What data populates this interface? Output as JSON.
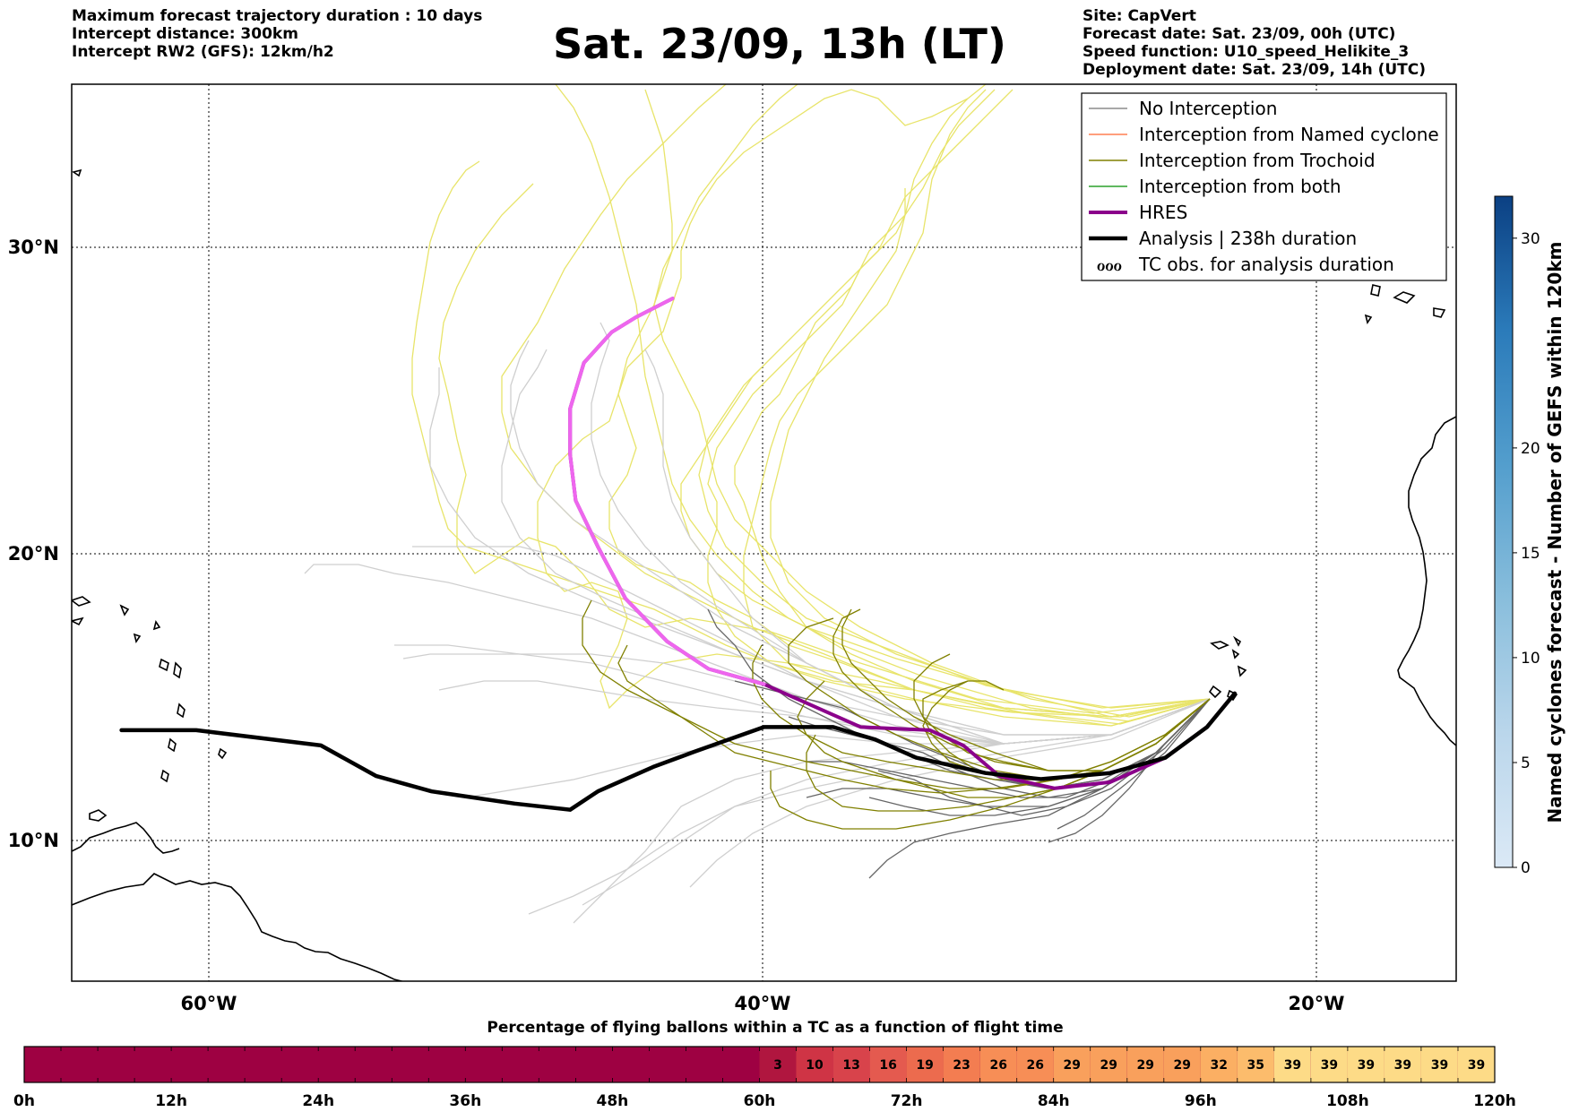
{
  "header_left": {
    "line1": "Maximum forecast trajectory duration : 10 days",
    "line2": "Intercept distance: 300km",
    "line3": "Intercept RW2 (GFS):  12km/h2"
  },
  "title": "Sat. 23/09, 13h (LT)",
  "header_right": {
    "line1": "Site: CapVert",
    "line2": "Forecast date: Sat. 23/09, 00h (UTC)",
    "line3": "Speed function: U10_speed_Helikite_3",
    "line4": "Deployment date: Sat. 23/09, 14h (UTC)"
  },
  "legend": {
    "items": [
      {
        "label": "No Interception",
        "color": "#8c8c8c"
      },
      {
        "label": "Interception from Named cyclone",
        "color": "#ff7f50"
      },
      {
        "label": "Interception from Trochoid",
        "color": "#808000"
      },
      {
        "label": "Interception from both",
        "color": "#2ca02c"
      },
      {
        "label": "HRES",
        "color": "#8b008b"
      },
      {
        "label": "Analysis | 238h duration",
        "color": "#000000"
      },
      {
        "label": "TC obs. for analysis duration",
        "symbol": "ℴℴℴ"
      }
    ]
  },
  "colorbar": {
    "title": "Named cyclones forecast - Number of GEFS within 120km",
    "ticks": [
      "0",
      "5",
      "10",
      "15",
      "20",
      "30"
    ],
    "tick_values": [
      0,
      5,
      10,
      15,
      20,
      30
    ],
    "range": [
      0,
      32
    ]
  },
  "bottom": {
    "title": "Percentage of flying ballons within a TC as a function of flight time",
    "hour_labels": [
      "0h",
      "12h",
      "24h",
      "36h",
      "48h",
      "60h",
      "72h",
      "84h",
      "96h",
      "108h",
      "120h"
    ],
    "percentages": [
      3,
      10,
      13,
      16,
      19,
      23,
      26,
      26,
      29,
      29,
      29,
      29,
      32,
      35,
      39,
      39,
      39,
      39,
      39,
      39
    ],
    "start_hour": 60,
    "step_hours": 3,
    "empty_color": "#9e0142"
  },
  "chart_data": {
    "type": "map-trajectories",
    "xaxis": {
      "ticks": [
        "60°W",
        "40°W",
        "20°W"
      ],
      "tick_values": [
        -60,
        -40,
        -20
      ],
      "range": [
        -65,
        -15
      ]
    },
    "yaxis": {
      "ticks": [
        "10°N",
        "20°N",
        "30°N"
      ],
      "tick_values": [
        10,
        20,
        30
      ],
      "range": [
        5.3,
        34.6
      ]
    },
    "grid": true,
    "legend_position": "top-right",
    "series": [
      {
        "name": "HRES",
        "color": "#8b008b",
        "points": [
          [
            -23.0,
            14.7
          ],
          [
            -24.0,
            13.6
          ],
          [
            -25.5,
            12.6
          ],
          [
            -27.5,
            11.8
          ],
          [
            -29.5,
            11.6
          ],
          [
            -31.5,
            12.0
          ],
          [
            -32.8,
            13.0
          ],
          [
            -34.0,
            13.5
          ],
          [
            -36.5,
            13.6
          ],
          [
            -38.0,
            14.2
          ],
          [
            -40.0,
            15.0
          ],
          [
            -42.0,
            15.5
          ],
          [
            -43.5,
            16.4
          ],
          [
            -45.0,
            17.8
          ],
          [
            -46.0,
            19.5
          ],
          [
            -46.8,
            21.0
          ],
          [
            -47.0,
            22.5
          ],
          [
            -47.0,
            24.0
          ],
          [
            -46.5,
            25.5
          ],
          [
            -45.5,
            26.5
          ],
          [
            -44.6,
            27.0
          ],
          [
            -43.3,
            27.6
          ]
        ]
      },
      {
        "name": "Analysis | 238h duration",
        "color": "#000000",
        "points": [
          [
            -23.0,
            14.7
          ],
          [
            -24.0,
            13.6
          ],
          [
            -25.5,
            12.6
          ],
          [
            -27.5,
            12.1
          ],
          [
            -30.0,
            11.9
          ],
          [
            -32.0,
            12.1
          ],
          [
            -34.5,
            12.6
          ],
          [
            -36.0,
            13.2
          ],
          [
            -37.5,
            13.6
          ],
          [
            -40.0,
            13.6
          ],
          [
            -42.5,
            12.8
          ],
          [
            -44.0,
            12.3
          ],
          [
            -46.0,
            11.5
          ],
          [
            -47.0,
            10.9
          ],
          [
            -49.0,
            11.1
          ],
          [
            -52.0,
            11.5
          ],
          [
            -54.0,
            12.0
          ],
          [
            -56.0,
            13.0
          ],
          [
            -60.5,
            13.5
          ],
          [
            -63.2,
            13.5
          ]
        ]
      }
    ]
  }
}
